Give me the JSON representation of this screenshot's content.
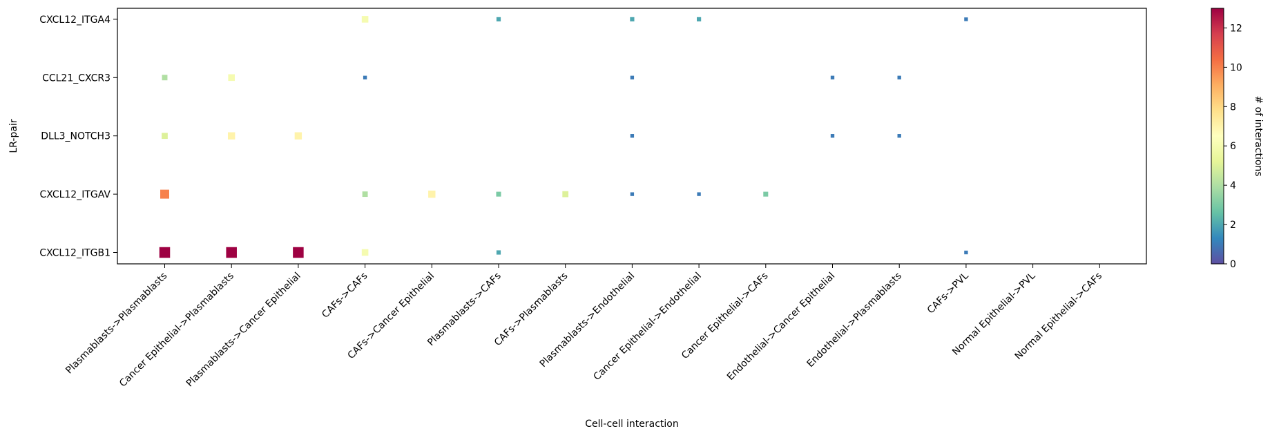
{
  "chart_data": {
    "type": "dotplot",
    "x_label": "Cell-cell interaction",
    "y_label": "LR-pair",
    "colorbar_label": "# of interactions",
    "categories": [
      "Plasmablasts->Plasmablasts",
      "Cancer Epithelial->Plasmablasts",
      "Plasmablasts->Cancer Epithelial",
      "CAFs->CAFs",
      "CAFs->Cancer Epithelial",
      "Plasmablasts->CAFs",
      "CAFs->Plasmablasts",
      "Plasmablasts->Endothelial",
      "Cancer Epithelial->Endothelial",
      "Cancer Epithelial->CAFs",
      "Endothelial->Cancer Epithelial",
      "Endothelial->Plasmablasts",
      "CAFs->PVL",
      "Normal Epithelial->PVL",
      "Normal Epithelial->CAFs"
    ],
    "rows": [
      "CXCL12_ITGB1",
      "CXCL12_ITGAV",
      "DLL3_NOTCH3",
      "CCL21_CXCR3",
      "CXCL12_ITGA4"
    ],
    "values": [
      [
        13,
        13,
        13,
        6,
        null,
        2,
        null,
        null,
        null,
        null,
        null,
        null,
        1,
        null,
        null
      ],
      [
        10,
        null,
        null,
        4,
        7,
        3,
        5,
        1,
        1,
        3,
        null,
        null,
        null,
        null,
        null
      ],
      [
        5,
        7,
        7,
        null,
        null,
        null,
        null,
        1,
        null,
        null,
        1,
        1,
        null,
        null,
        null
      ],
      [
        4,
        6,
        null,
        1,
        null,
        null,
        null,
        1,
        null,
        null,
        1,
        1,
        null,
        null,
        null
      ],
      [
        null,
        null,
        null,
        6,
        null,
        2,
        null,
        2,
        2,
        null,
        null,
        null,
        1,
        null,
        null
      ]
    ],
    "clim": [
      0,
      13
    ],
    "cticks": [
      0,
      2,
      4,
      6,
      8,
      10,
      12
    ],
    "colormap": [
      "#5e4fa2",
      "#3288bd",
      "#66c2a5",
      "#abdda4",
      "#e6f598",
      "#ffffbf",
      "#fee08b",
      "#fdae61",
      "#f46d43",
      "#d53e4f",
      "#9e0142"
    ]
  }
}
